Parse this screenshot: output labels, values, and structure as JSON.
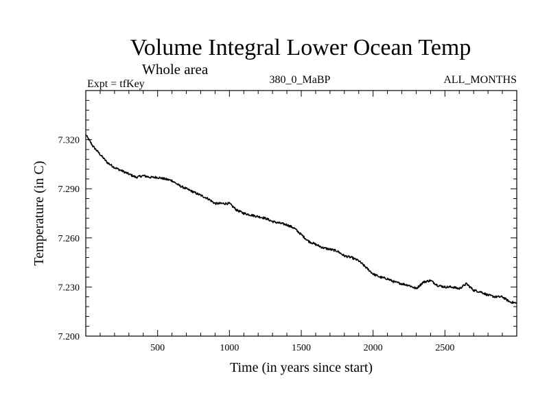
{
  "chart_data": {
    "type": "line",
    "title": "Volume Integral Lower Ocean Temp",
    "subtitle": "Whole area",
    "left_label": "Expt = tfKey",
    "center_label": "380_0_MaBP",
    "right_label": "ALL_MONTHS",
    "xlabel": "Time (in years since start)",
    "ylabel": "Temperature (in C)",
    "xlim": [
      0,
      3000
    ],
    "ylim": [
      7.2,
      7.35
    ],
    "x_ticks": [
      500,
      1000,
      1500,
      2000,
      2500
    ],
    "x_tick_labels": [
      "500",
      "1000",
      "1500",
      "2000",
      "2500"
    ],
    "y_ticks": [
      7.2,
      7.23,
      7.26,
      7.29,
      7.32
    ],
    "y_tick_labels": [
      "7.200",
      "7.230",
      "7.260",
      "7.290",
      "7.320"
    ],
    "grid": false,
    "series": [
      {
        "color": "#000000",
        "x": [
          0,
          50,
          100,
          150,
          200,
          250,
          300,
          350,
          400,
          450,
          500,
          550,
          600,
          650,
          700,
          750,
          800,
          850,
          900,
          950,
          1000,
          1050,
          1100,
          1150,
          1200,
          1250,
          1300,
          1350,
          1400,
          1450,
          1500,
          1550,
          1600,
          1650,
          1700,
          1750,
          1800,
          1850,
          1900,
          1950,
          2000,
          2050,
          2100,
          2150,
          2200,
          2250,
          2300,
          2350,
          2400,
          2450,
          2500,
          2550,
          2600,
          2650,
          2700,
          2750,
          2800,
          2850,
          2900,
          2950,
          3000
        ],
        "y": [
          7.323,
          7.316,
          7.311,
          7.306,
          7.303,
          7.301,
          7.299,
          7.297,
          7.298,
          7.297,
          7.297,
          7.296,
          7.295,
          7.292,
          7.29,
          7.288,
          7.286,
          7.284,
          7.281,
          7.281,
          7.281,
          7.277,
          7.275,
          7.274,
          7.273,
          7.272,
          7.27,
          7.269,
          7.268,
          7.266,
          7.262,
          7.258,
          7.256,
          7.254,
          7.253,
          7.252,
          7.249,
          7.248,
          7.246,
          7.242,
          7.238,
          7.236,
          7.235,
          7.233,
          7.232,
          7.231,
          7.229,
          7.233,
          7.234,
          7.231,
          7.23,
          7.23,
          7.229,
          7.232,
          7.228,
          7.227,
          7.225,
          7.224,
          7.224,
          7.221,
          7.22
        ]
      }
    ]
  }
}
